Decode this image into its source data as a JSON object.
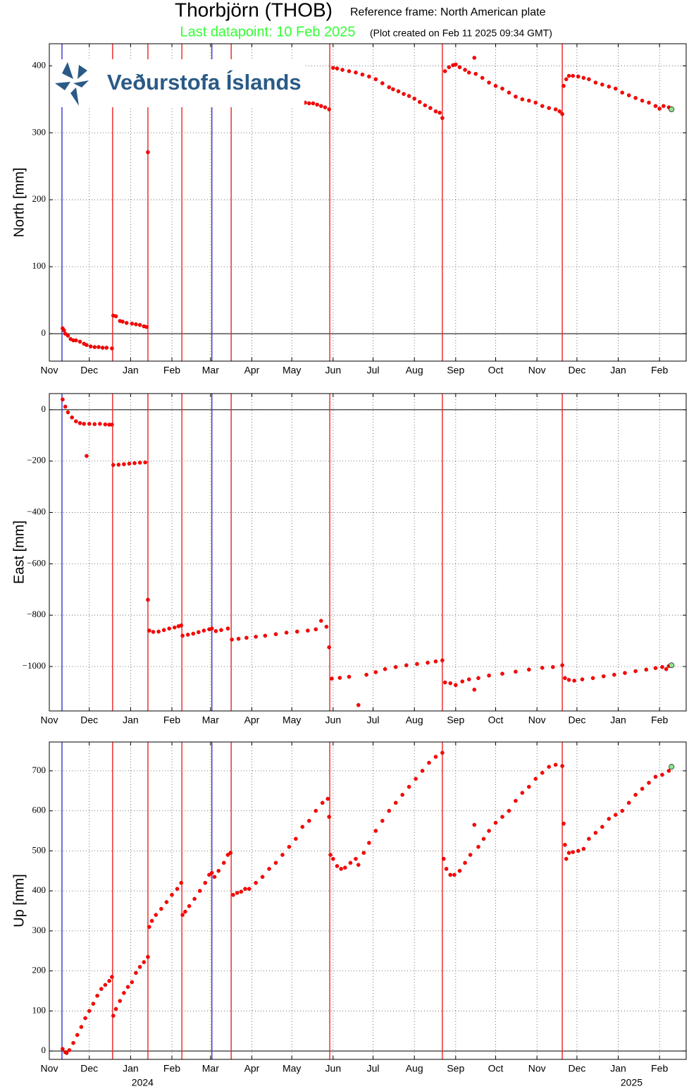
{
  "header": {
    "title": "Thorbjörn (THOB)",
    "reference": "Reference frame: North American plate",
    "last_datapoint": "Last datapoint: 10 Feb 2025",
    "created": "(Plot created on Feb 11 2025 09:34 GMT)"
  },
  "logo": {
    "text": "Veðurstofa Íslands"
  },
  "chart_data": [
    {
      "type": "scatter",
      "ylabel": "North [mm]",
      "color": "#ff0000",
      "last_point_color": "#88e888",
      "grid": true,
      "xlim": [
        0,
        478
      ],
      "ylim": [
        -41,
        433
      ],
      "yticks": [
        0,
        100,
        200,
        300,
        400
      ],
      "xticks": [
        {
          "value": 0,
          "label": "Nov"
        },
        {
          "value": 30,
          "label": "Dec"
        },
        {
          "value": 61,
          "label": "Jan"
        },
        {
          "value": 92,
          "label": "Feb"
        },
        {
          "value": 121,
          "label": "Mar"
        },
        {
          "value": 152,
          "label": "Apr"
        },
        {
          "value": 182,
          "label": "May"
        },
        {
          "value": 213,
          "label": "Jun"
        },
        {
          "value": 243,
          "label": "Jul"
        },
        {
          "value": 274,
          "label": "Aug"
        },
        {
          "value": 305,
          "label": "Sep"
        },
        {
          "value": 335,
          "label": "Oct"
        },
        {
          "value": 366,
          "label": "Nov"
        },
        {
          "value": 396,
          "label": "Dec"
        },
        {
          "value": 427,
          "label": "Jan"
        },
        {
          "value": 458,
          "label": "Feb"
        }
      ],
      "vlines": [
        {
          "x": 9.5,
          "color": "#3333cc"
        },
        {
          "x": 47.5,
          "color": "#ee2222"
        },
        {
          "x": 74,
          "color": "#ee2222"
        },
        {
          "x": 99.5,
          "color": "#ee2222"
        },
        {
          "x": 122,
          "color": "#3333cc"
        },
        {
          "x": 136.5,
          "color": "#ee2222"
        },
        {
          "x": 210.5,
          "color": "#ee2222"
        },
        {
          "x": 295,
          "color": "#ee2222"
        },
        {
          "x": 385,
          "color": "#ee2222"
        }
      ],
      "x": [
        10,
        11,
        12,
        14,
        16,
        18,
        20,
        23,
        26,
        28,
        31,
        34,
        37,
        40,
        43,
        47,
        48,
        50,
        53,
        55,
        58,
        62,
        65,
        68,
        71,
        73,
        74,
        189,
        192,
        195,
        198,
        201,
        204,
        207,
        210,
        213,
        216,
        220,
        225,
        230,
        235,
        240,
        245,
        250,
        255,
        258,
        262,
        266,
        270,
        274,
        278,
        282,
        286,
        290,
        293,
        295,
        297,
        300,
        303,
        305,
        308,
        312,
        315,
        319,
        320,
        325,
        330,
        335,
        340,
        345,
        350,
        355,
        360,
        365,
        370,
        375,
        380,
        383,
        385,
        386,
        388,
        390,
        393,
        397,
        401,
        405,
        410,
        415,
        420,
        425,
        430,
        435,
        440,
        445,
        450,
        455,
        458,
        461,
        465,
        467
      ],
      "values": [
        8,
        5,
        0,
        -3,
        -8,
        -10,
        -10,
        -12,
        -15,
        -17,
        -19,
        -20,
        -20,
        -21,
        -21,
        -22,
        27,
        26,
        19,
        18,
        16,
        15,
        14,
        13,
        11,
        10,
        271,
        352,
        345,
        344,
        344,
        342,
        340,
        338,
        335,
        397,
        396,
        394,
        392,
        390,
        387,
        384,
        380,
        374,
        368,
        365,
        362,
        358,
        355,
        351,
        346,
        341,
        337,
        332,
        330,
        322,
        392,
        398,
        401,
        402,
        398,
        394,
        390,
        412,
        388,
        382,
        375,
        370,
        366,
        360,
        354,
        350,
        348,
        345,
        340,
        337,
        335,
        332,
        328,
        370,
        380,
        385,
        385,
        384,
        382,
        380,
        375,
        372,
        369,
        366,
        360,
        356,
        352,
        348,
        345,
        340,
        336,
        340,
        338,
        335
      ]
    },
    {
      "type": "scatter",
      "ylabel": "East [mm]",
      "color": "#ff0000",
      "last_point_color": "#88e888",
      "grid": true,
      "xlim": [
        0,
        478
      ],
      "ylim": [
        -1173,
        63
      ],
      "yticks": [
        {
          "value": -1000,
          "label": "−1000"
        },
        {
          "value": -800,
          "label": "−800"
        },
        {
          "value": -600,
          "label": "−600"
        },
        {
          "value": -400,
          "label": "−400"
        },
        {
          "value": -200,
          "label": "−200"
        },
        0
      ],
      "xticks": [
        {
          "value": 0,
          "label": "Nov"
        },
        {
          "value": 30,
          "label": "Dec"
        },
        {
          "value": 61,
          "label": "Jan"
        },
        {
          "value": 92,
          "label": "Feb"
        },
        {
          "value": 121,
          "label": "Mar"
        },
        {
          "value": 152,
          "label": "Apr"
        },
        {
          "value": 182,
          "label": "May"
        },
        {
          "value": 213,
          "label": "Jun"
        },
        {
          "value": 243,
          "label": "Jul"
        },
        {
          "value": 274,
          "label": "Aug"
        },
        {
          "value": 305,
          "label": "Sep"
        },
        {
          "value": 335,
          "label": "Oct"
        },
        {
          "value": 366,
          "label": "Nov"
        },
        {
          "value": 396,
          "label": "Dec"
        },
        {
          "value": 427,
          "label": "Jan"
        },
        {
          "value": 458,
          "label": "Feb"
        }
      ],
      "vlines": [
        {
          "x": 9.5,
          "color": "#3333cc"
        },
        {
          "x": 47.5,
          "color": "#ee2222"
        },
        {
          "x": 74,
          "color": "#ee2222"
        },
        {
          "x": 99.5,
          "color": "#ee2222"
        },
        {
          "x": 122,
          "color": "#3333cc"
        },
        {
          "x": 136.5,
          "color": "#ee2222"
        },
        {
          "x": 210.5,
          "color": "#ee2222"
        },
        {
          "x": 295,
          "color": "#ee2222"
        },
        {
          "x": 385,
          "color": "#ee2222"
        }
      ],
      "x": [
        10,
        12,
        14,
        17,
        20,
        23,
        26,
        28,
        30,
        34,
        38,
        42,
        45,
        47,
        48,
        52,
        56,
        60,
        64,
        68,
        72,
        74,
        75,
        78,
        82,
        86,
        90,
        94,
        97,
        99,
        100,
        104,
        108,
        112,
        116,
        120,
        122,
        125,
        129,
        134,
        137,
        142,
        148,
        155,
        162,
        170,
        178,
        186,
        194,
        200,
        204,
        208,
        210,
        212,
        218,
        225,
        232,
        238,
        245,
        252,
        260,
        268,
        276,
        284,
        290,
        295,
        297,
        301,
        305,
        310,
        315,
        319,
        322,
        330,
        340,
        350,
        360,
        370,
        378,
        385,
        387,
        390,
        394,
        400,
        408,
        416,
        424,
        432,
        440,
        448,
        455,
        460,
        463,
        465,
        467
      ],
      "values": [
        40,
        12,
        -10,
        -30,
        -45,
        -52,
        -55,
        -180,
        -55,
        -56,
        -55,
        -57,
        -58,
        -58,
        -215,
        -214,
        -212,
        -210,
        -208,
        -206,
        -205,
        -740,
        -860,
        -865,
        -864,
        -858,
        -852,
        -848,
        -843,
        -840,
        -880,
        -876,
        -872,
        -866,
        -860,
        -855,
        -852,
        -862,
        -858,
        -852,
        -895,
        -892,
        -888,
        -884,
        -880,
        -874,
        -868,
        -864,
        -860,
        -855,
        -822,
        -845,
        -925,
        -1047,
        -1044,
        -1040,
        -1150,
        -1032,
        -1022,
        -1010,
        -1002,
        -995,
        -990,
        -985,
        -980,
        -976,
        -1062,
        -1065,
        -1072,
        -1058,
        -1050,
        -1090,
        -1045,
        -1035,
        -1028,
        -1020,
        -1012,
        -1005,
        -1002,
        -995,
        -1045,
        -1052,
        -1055,
        -1050,
        -1045,
        -1038,
        -1032,
        -1025,
        -1018,
        -1012,
        -1006,
        -1002,
        -1010,
        -998,
        -995
      ]
    },
    {
      "type": "scatter",
      "ylabel": "Up [mm]",
      "color": "#ff0000",
      "last_point_color": "#88e888",
      "grid": true,
      "xlim": [
        0,
        478
      ],
      "ylim": [
        -21,
        772
      ],
      "yticks": [
        0,
        100,
        200,
        300,
        400,
        500,
        600,
        700
      ],
      "xticks": [
        {
          "value": 0,
          "label": "Nov"
        },
        {
          "value": 30,
          "label": "Dec"
        },
        {
          "value": 61,
          "label": "Jan"
        },
        {
          "value": 92,
          "label": "Feb"
        },
        {
          "value": 121,
          "label": "Mar"
        },
        {
          "value": 152,
          "label": "Apr"
        },
        {
          "value": 182,
          "label": "May"
        },
        {
          "value": 213,
          "label": "Jun"
        },
        {
          "value": 243,
          "label": "Jul"
        },
        {
          "value": 274,
          "label": "Aug"
        },
        {
          "value": 305,
          "label": "Sep"
        },
        {
          "value": 335,
          "label": "Oct"
        },
        {
          "value": 366,
          "label": "Nov"
        },
        {
          "value": 396,
          "label": "Dec"
        },
        {
          "value": 427,
          "label": "Jan"
        },
        {
          "value": 458,
          "label": "Feb"
        }
      ],
      "xticks2": [
        {
          "value": 70,
          "label": "2024"
        },
        {
          "value": 437,
          "label": "2025"
        }
      ],
      "vlines": [
        {
          "x": 9.5,
          "color": "#3333cc"
        },
        {
          "x": 47.5,
          "color": "#ee2222"
        },
        {
          "x": 74,
          "color": "#ee2222"
        },
        {
          "x": 99.5,
          "color": "#ee2222"
        },
        {
          "x": 122,
          "color": "#3333cc"
        },
        {
          "x": 136.5,
          "color": "#ee2222"
        },
        {
          "x": 210.5,
          "color": "#ee2222"
        },
        {
          "x": 295,
          "color": "#ee2222"
        },
        {
          "x": 385,
          "color": "#ee2222"
        }
      ],
      "x": [
        10,
        12,
        13,
        15,
        18,
        21,
        24,
        27,
        30,
        33,
        36,
        39,
        42,
        45,
        47,
        48,
        50,
        53,
        56,
        59,
        62,
        65,
        68,
        71,
        74,
        75,
        77,
        80,
        84,
        88,
        92,
        96,
        99,
        100,
        102,
        105,
        109,
        113,
        117,
        120,
        122,
        124,
        127,
        131,
        134,
        136,
        138,
        141,
        144,
        147,
        150,
        155,
        160,
        165,
        170,
        175,
        180,
        185,
        190,
        195,
        200,
        205,
        209,
        210,
        211,
        213,
        216,
        219,
        222,
        226,
        230,
        232,
        236,
        240,
        245,
        250,
        255,
        260,
        265,
        270,
        275,
        280,
        285,
        290,
        295,
        296,
        298,
        301,
        304,
        308,
        312,
        316,
        319,
        322,
        326,
        330,
        335,
        340,
        345,
        350,
        355,
        360,
        365,
        370,
        375,
        380,
        385,
        386,
        387,
        388,
        390,
        393,
        397,
        401,
        405,
        410,
        415,
        420,
        425,
        430,
        435,
        440,
        445,
        450,
        455,
        460,
        465,
        467
      ],
      "values": [
        5,
        -3,
        -5,
        2,
        20,
        40,
        60,
        82,
        100,
        118,
        138,
        155,
        165,
        175,
        185,
        88,
        105,
        125,
        145,
        160,
        172,
        195,
        210,
        222,
        235,
        310,
        325,
        340,
        355,
        372,
        390,
        405,
        420,
        340,
        348,
        362,
        380,
        400,
        420,
        440,
        445,
        435,
        450,
        470,
        490,
        495,
        390,
        395,
        398,
        405,
        405,
        420,
        435,
        455,
        470,
        490,
        510,
        530,
        560,
        575,
        600,
        620,
        630,
        585,
        490,
        480,
        462,
        455,
        458,
        470,
        480,
        465,
        495,
        520,
        550,
        575,
        600,
        620,
        640,
        660,
        680,
        700,
        720,
        735,
        745,
        480,
        455,
        440,
        440,
        450,
        470,
        490,
        565,
        510,
        530,
        550,
        570,
        585,
        600,
        625,
        645,
        660,
        680,
        695,
        710,
        715,
        712,
        568,
        515,
        480,
        495,
        497,
        500,
        505,
        530,
        545,
        560,
        580,
        590,
        600,
        620,
        640,
        655,
        670,
        685,
        690,
        700,
        710
      ]
    }
  ]
}
